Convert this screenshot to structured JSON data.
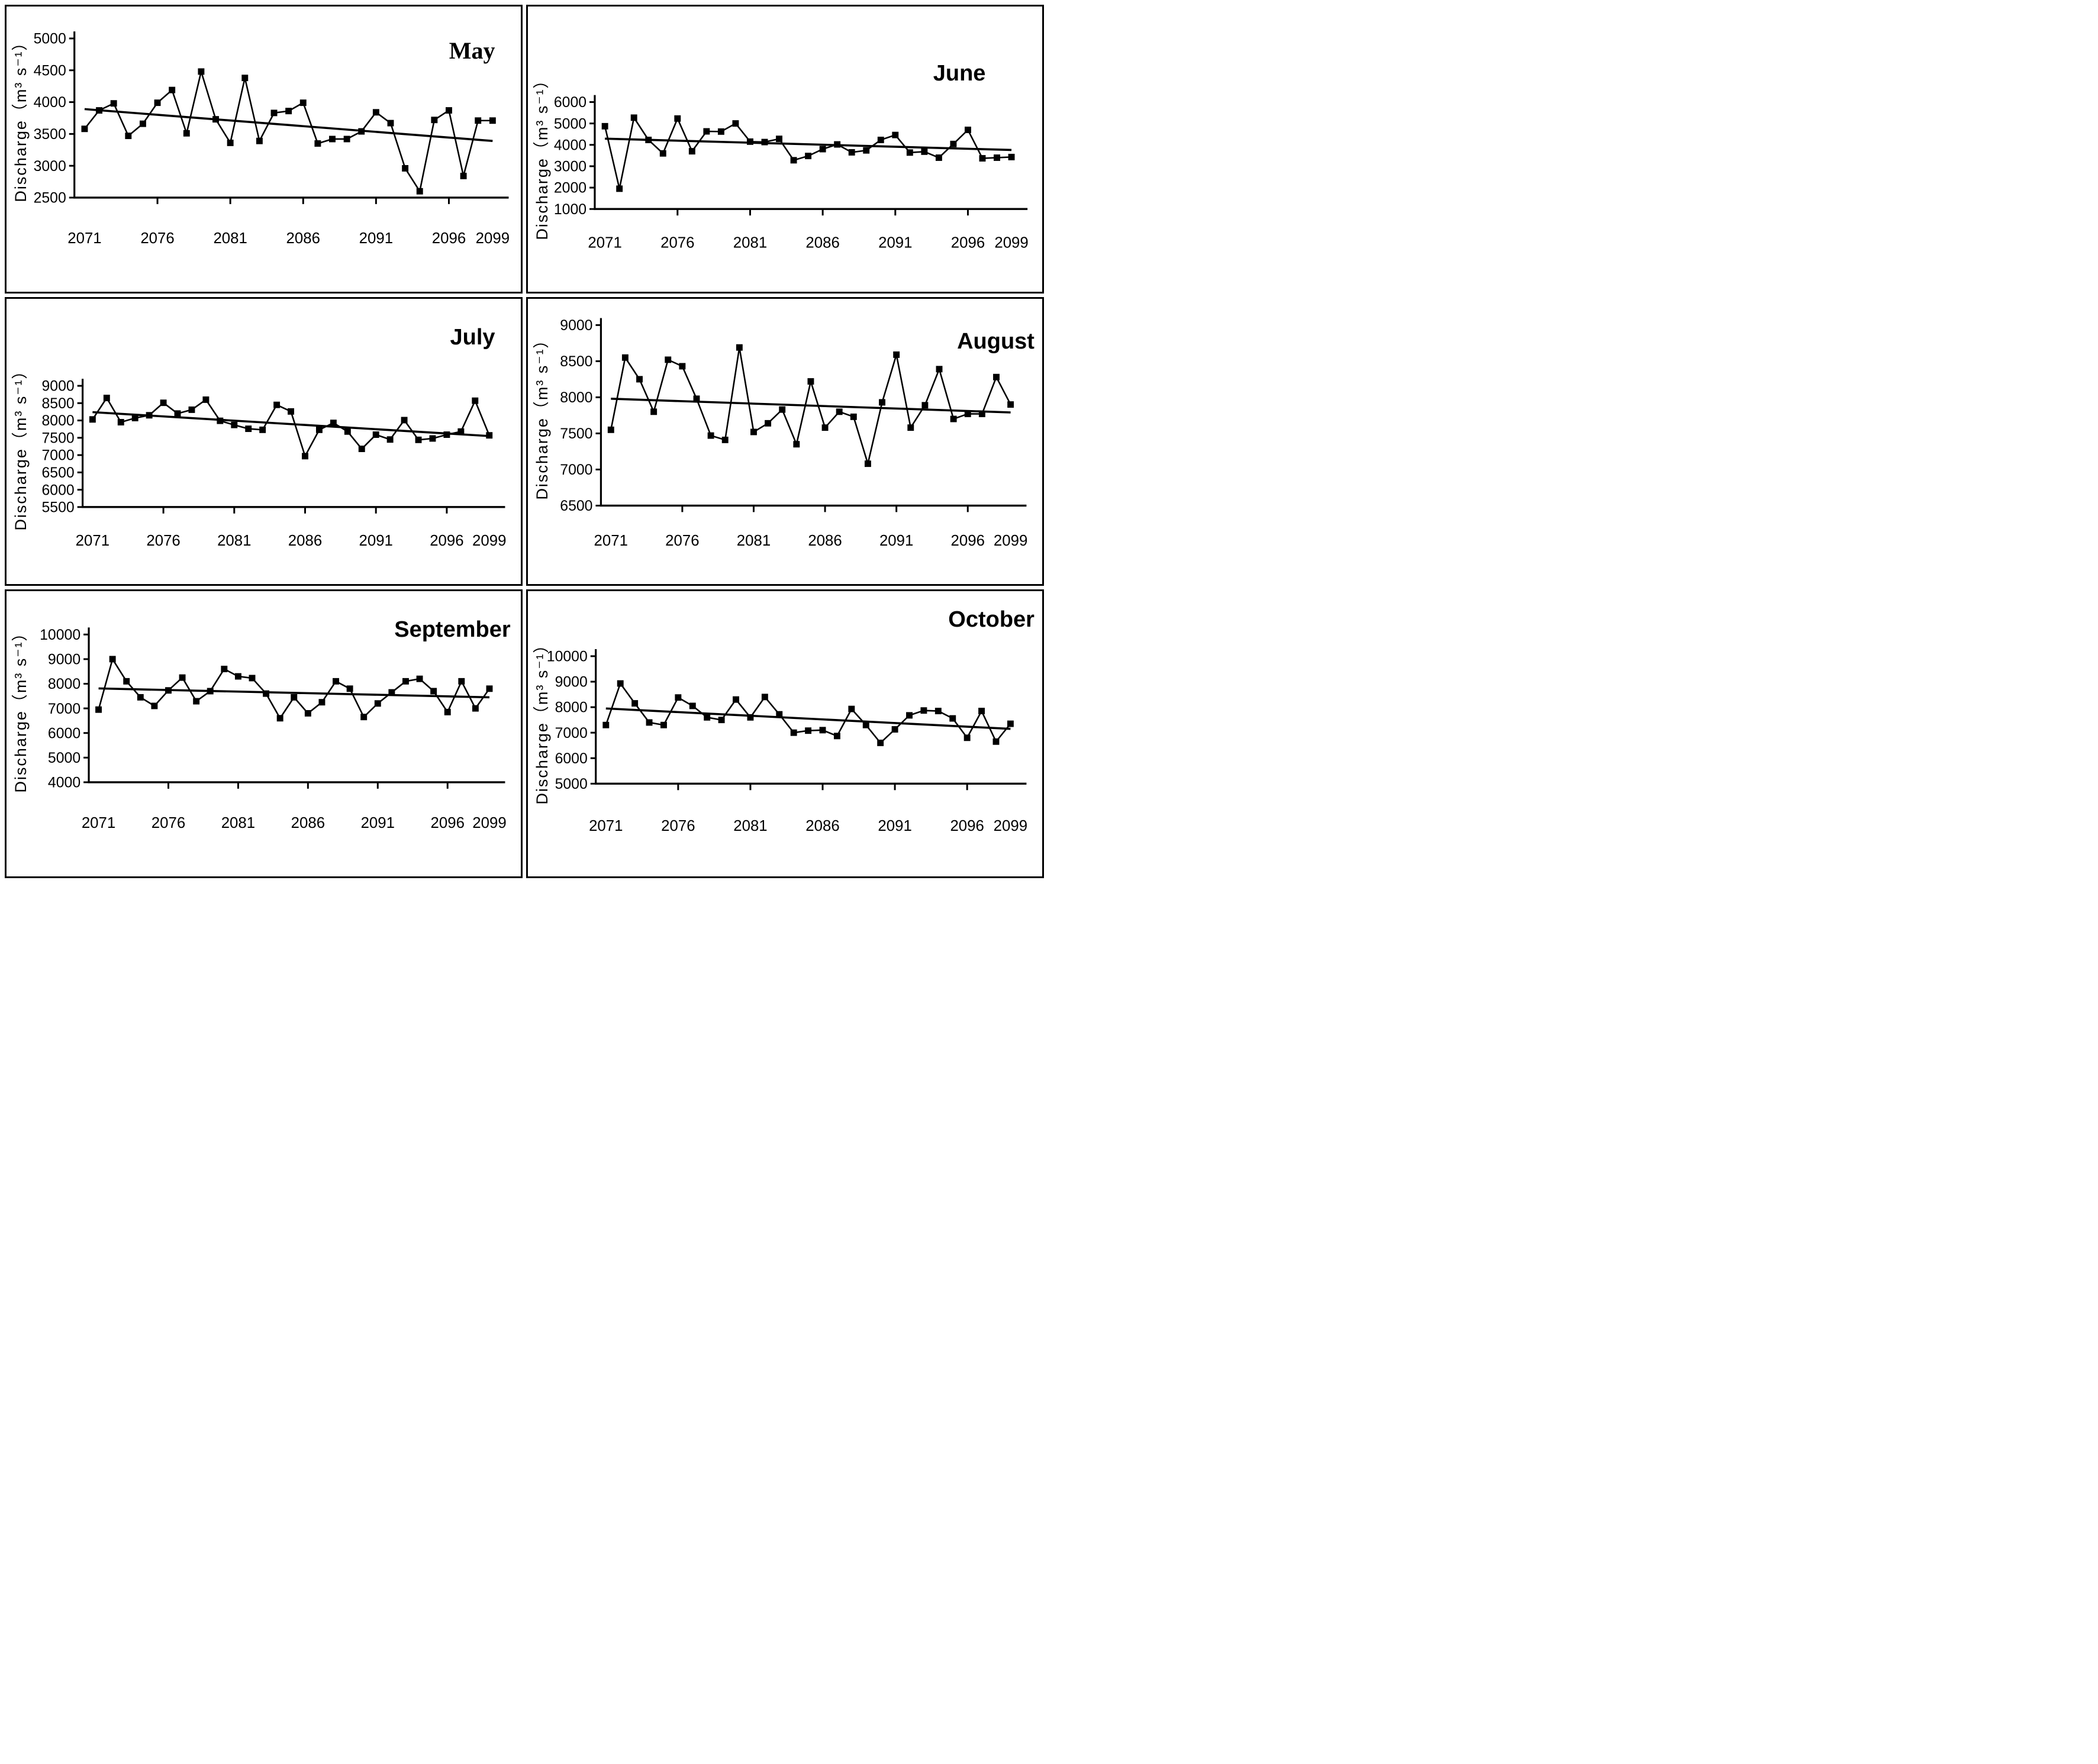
{
  "years": [
    2071,
    2072,
    2073,
    2074,
    2075,
    2076,
    2077,
    2078,
    2079,
    2080,
    2081,
    2082,
    2083,
    2084,
    2085,
    2086,
    2087,
    2088,
    2089,
    2090,
    2091,
    2092,
    2093,
    2094,
    2095,
    2096,
    2097,
    2098,
    2099
  ],
  "colors": {
    "series": "#000000",
    "trend": "#000000",
    "axis": "#000000",
    "background": "#ffffff"
  },
  "chart_data": [
    {
      "type": "line",
      "title": "May",
      "ylabel": "Discharge（m³ s⁻¹）",
      "xlabel": "",
      "x_range": [
        2071,
        2099
      ],
      "xticks": [
        2071,
        2076,
        2081,
        2086,
        2091,
        2096,
        2099
      ],
      "ylim": [
        2500,
        5000
      ],
      "yticks": [
        2500,
        3000,
        3500,
        4000,
        4500,
        5000
      ],
      "values": [
        3580,
        3870,
        3980,
        3470,
        3660,
        3990,
        4190,
        3510,
        4480,
        3730,
        3360,
        4380,
        3390,
        3830,
        3860,
        3990,
        3350,
        3420,
        3420,
        3540,
        3840,
        3670,
        2960,
        2600,
        3720,
        3870,
        2840,
        3710,
        3710
      ],
      "trend": {
        "start": 3890,
        "end": 3390
      },
      "marker": "square",
      "grid": false,
      "legend": false
    },
    {
      "type": "line",
      "title": "June",
      "ylabel": "Discharge（m³ s⁻¹）",
      "xlabel": "",
      "x_range": [
        2071,
        2099
      ],
      "xticks": [
        2071,
        2076,
        2081,
        2086,
        2091,
        2096,
        2099
      ],
      "ylim": [
        1000,
        6000
      ],
      "yticks": [
        1000,
        2000,
        3000,
        4000,
        5000,
        6000
      ],
      "values": [
        4870,
        1950,
        5270,
        4230,
        3600,
        5230,
        3700,
        4630,
        4620,
        5000,
        4150,
        4130,
        4280,
        3280,
        3480,
        3800,
        4020,
        3650,
        3740,
        4230,
        4460,
        3640,
        3680,
        3400,
        4040,
        4700,
        3370,
        3400,
        3430
      ],
      "trend": {
        "start": 4290,
        "end": 3760
      },
      "marker": "square",
      "grid": false,
      "legend": false
    },
    {
      "type": "line",
      "title": "July",
      "ylabel": "Discharge（m³ s⁻¹）",
      "xlabel": "",
      "x_range": [
        2071,
        2099
      ],
      "xticks": [
        2071,
        2076,
        2081,
        2086,
        2091,
        2096,
        2099
      ],
      "ylim": [
        5500,
        9000
      ],
      "yticks": [
        5500,
        6000,
        6500,
        7000,
        7500,
        8000,
        8500,
        9000
      ],
      "values": [
        8030,
        8650,
        7950,
        8070,
        8150,
        8510,
        8200,
        8310,
        8600,
        7990,
        7870,
        7760,
        7730,
        8450,
        8260,
        6970,
        7730,
        7930,
        7680,
        7180,
        7590,
        7450,
        8010,
        7440,
        7480,
        7590,
        7680,
        8570,
        7570
      ],
      "trend": {
        "start": 8240,
        "end": 7550
      },
      "marker": "square",
      "grid": false,
      "legend": false
    },
    {
      "type": "line",
      "title": "August",
      "ylabel": "Discharge（m³ s⁻¹）",
      "xlabel": "",
      "x_range": [
        2071,
        2099
      ],
      "xticks": [
        2071,
        2076,
        2081,
        2086,
        2091,
        2096,
        2099
      ],
      "ylim": [
        6500,
        9000
      ],
      "yticks": [
        6500,
        7000,
        7500,
        8000,
        8500,
        9000
      ],
      "values": [
        7550,
        8550,
        8250,
        7800,
        8520,
        8430,
        7980,
        7470,
        7410,
        8690,
        7520,
        7640,
        7830,
        7350,
        8220,
        7580,
        7800,
        7730,
        7080,
        7930,
        8590,
        7580,
        7890,
        8390,
        7700,
        7770,
        7770,
        8280,
        7900
      ],
      "trend": {
        "start": 7980,
        "end": 7790
      },
      "marker": "square",
      "grid": false,
      "legend": false
    },
    {
      "type": "line",
      "title": "September",
      "ylabel": "Discharge（m³ s⁻¹）",
      "xlabel": "",
      "x_range": [
        2071,
        2099
      ],
      "xticks": [
        2071,
        2076,
        2081,
        2086,
        2091,
        2096,
        2099
      ],
      "ylim": [
        4000,
        10000
      ],
      "yticks": [
        4000,
        5000,
        6000,
        7000,
        8000,
        9000,
        10000
      ],
      "values": [
        6950,
        9000,
        8100,
        7450,
        7100,
        7730,
        8250,
        7290,
        7700,
        8600,
        8300,
        8230,
        7600,
        6600,
        7450,
        6800,
        7250,
        8100,
        7800,
        6650,
        7200,
        7650,
        8100,
        8200,
        7700,
        6850,
        8100,
        7000,
        7800
      ],
      "trend": {
        "start": 7810,
        "end": 7450
      },
      "marker": "square",
      "grid": false,
      "legend": false
    },
    {
      "type": "line",
      "title": "October",
      "ylabel": "Discharge（m³ s⁻¹）",
      "xlabel": "",
      "x_range": [
        2071,
        2099
      ],
      "xticks": [
        2071,
        2076,
        2081,
        2086,
        2091,
        2096,
        2099
      ],
      "ylim": [
        5000,
        10000
      ],
      "yticks": [
        5000,
        6000,
        7000,
        8000,
        9000,
        10000
      ],
      "values": [
        7300,
        8930,
        8150,
        7400,
        7300,
        8380,
        8050,
        7600,
        7500,
        8300,
        7600,
        8400,
        7720,
        7000,
        7080,
        7100,
        6870,
        7930,
        7300,
        6600,
        7130,
        7680,
        7870,
        7850,
        7560,
        6800,
        7850,
        6650,
        7350
      ],
      "trend": {
        "start": 7950,
        "end": 7150
      },
      "marker": "square",
      "grid": false,
      "legend": false
    }
  ]
}
